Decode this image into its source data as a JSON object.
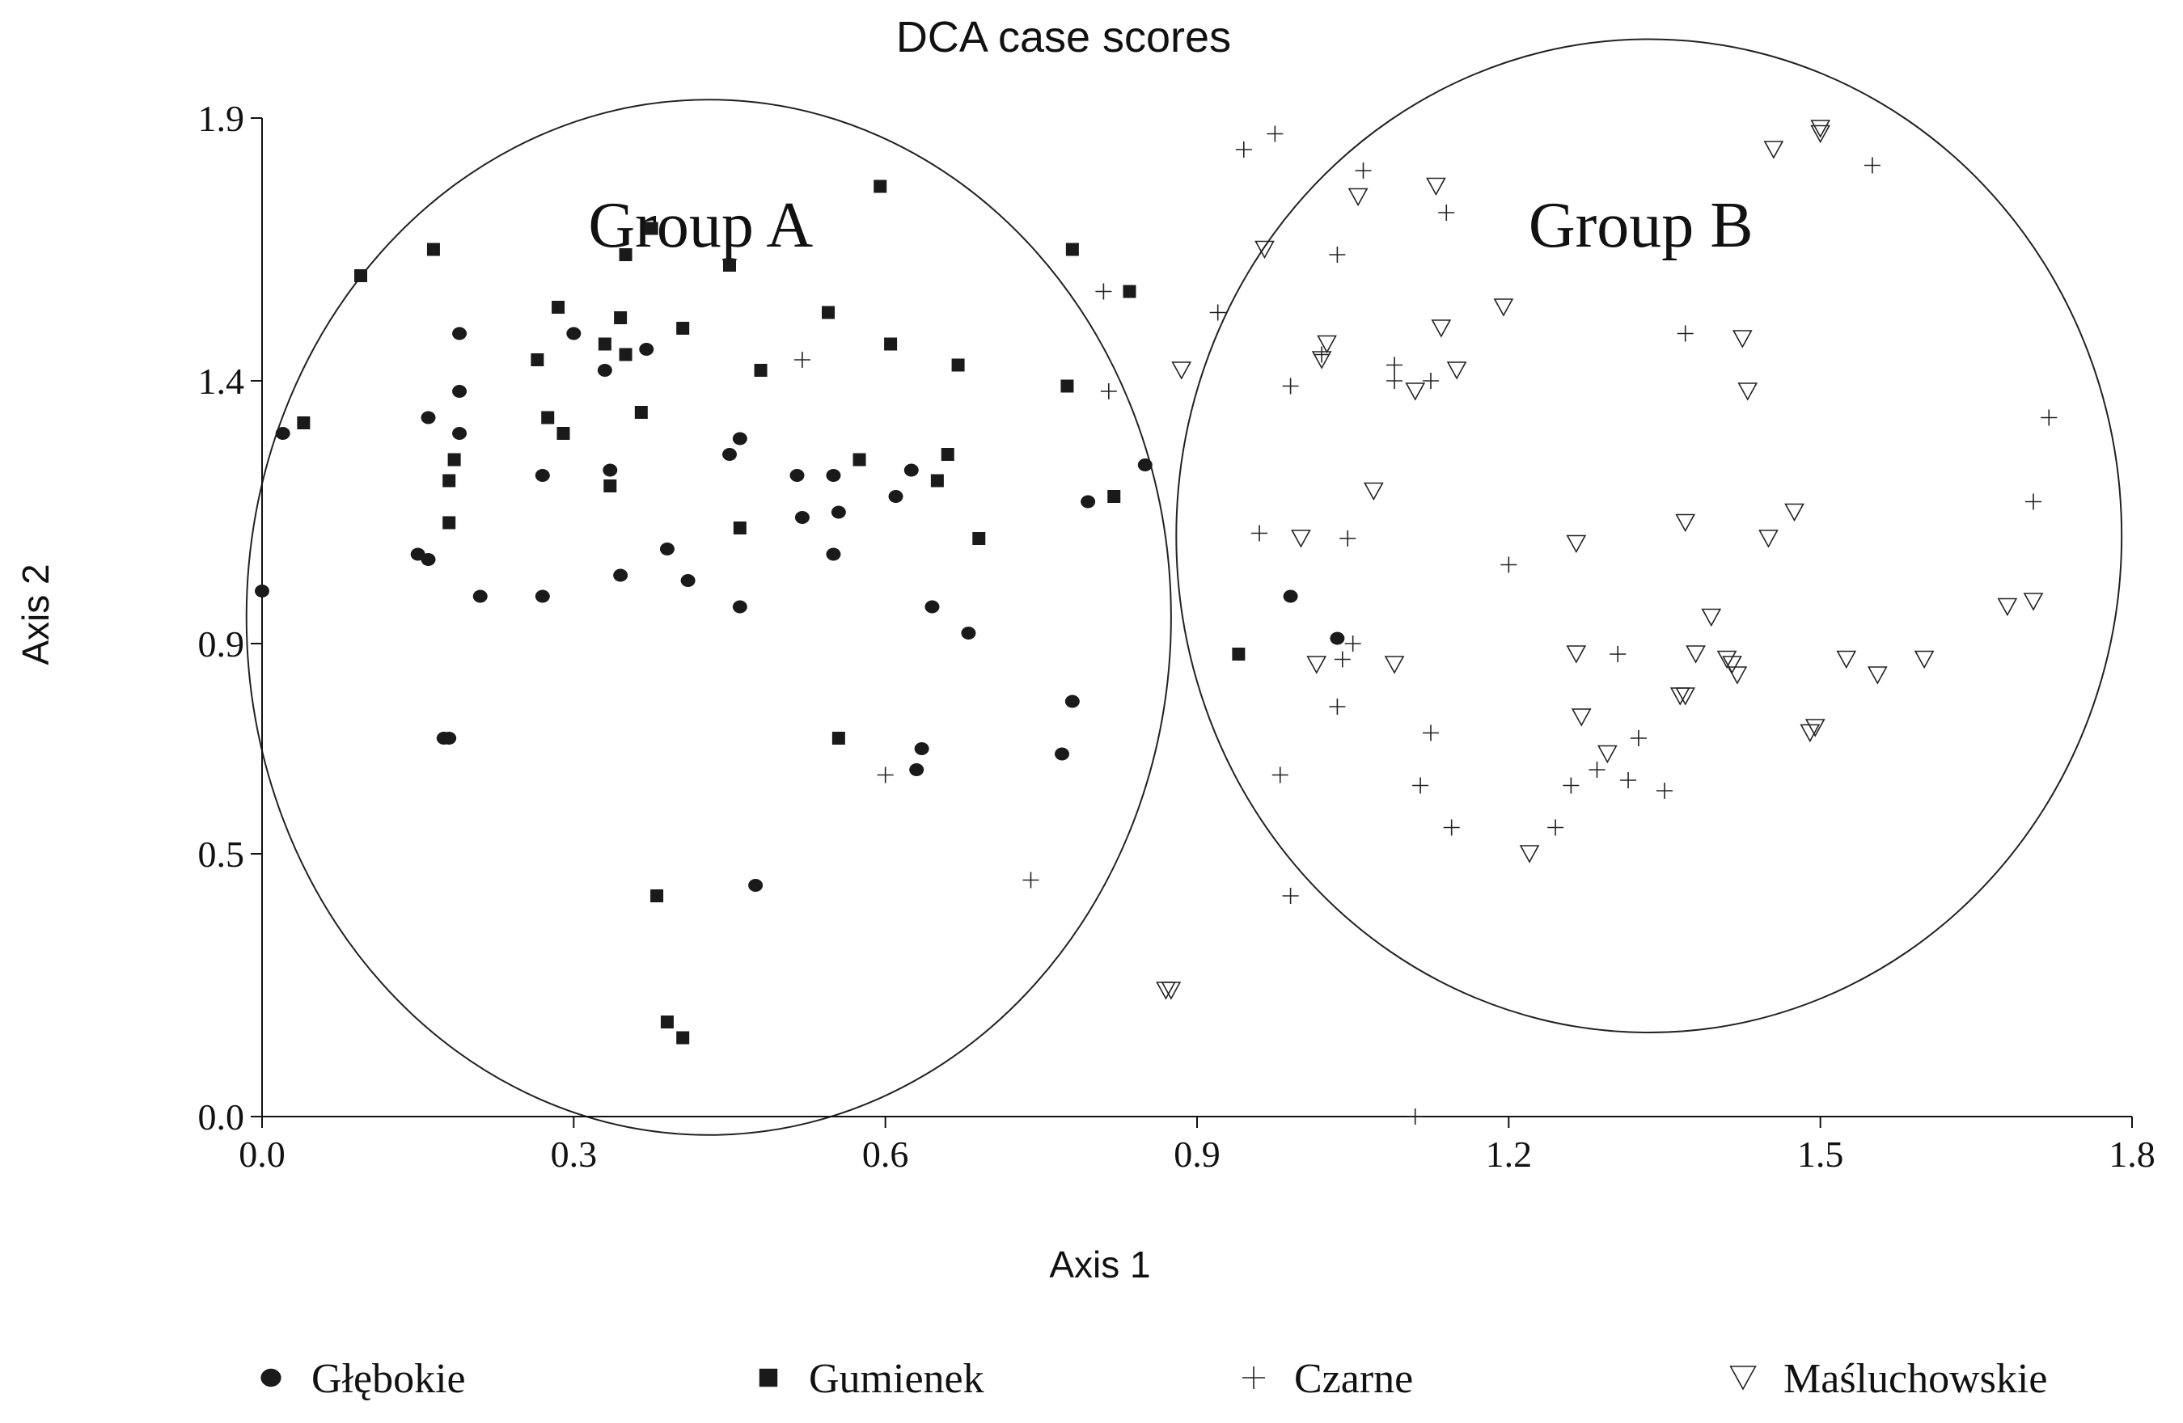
{
  "chart_data": {
    "type": "scatter",
    "title": "DCA case scores",
    "xlabel": "Axis 1",
    "ylabel": "Axis 2",
    "xlim": [
      0.0,
      1.8
    ],
    "ylim": [
      0.0,
      1.9
    ],
    "x_ticks": [
      "0.0",
      "0.3",
      "0.6",
      "0.9",
      "1.2",
      "1.5",
      "1.8"
    ],
    "y_ticks": [
      "0.0",
      "0.5",
      "0.9",
      "1.4",
      "1.9"
    ],
    "x_tick_values": [
      0.0,
      0.3,
      0.6,
      0.9,
      1.2,
      1.5,
      1.8
    ],
    "y_tick_values": [
      0.0,
      0.5,
      0.9,
      1.4,
      1.9
    ],
    "grid": false,
    "legend_position": "bottom",
    "annotations": [
      {
        "label": "Group A",
        "center": [
          0.43,
          0.95
        ],
        "rx": 0.445,
        "ry": 0.985
      },
      {
        "label": "Group B",
        "center": [
          1.335,
          1.105
        ],
        "rx": 0.455,
        "ry": 0.945
      }
    ],
    "series": [
      {
        "name": "Głębokie",
        "marker": "circle",
        "points": [
          [
            0.0,
            1.0
          ],
          [
            0.02,
            1.3
          ],
          [
            0.15,
            1.07
          ],
          [
            0.16,
            1.06
          ],
          [
            0.16,
            1.33
          ],
          [
            0.175,
            0.72
          ],
          [
            0.18,
            0.72
          ],
          [
            0.19,
            1.38
          ],
          [
            0.19,
            1.3
          ],
          [
            0.19,
            1.49
          ],
          [
            0.21,
            0.99
          ],
          [
            0.27,
            1.22
          ],
          [
            0.27,
            0.99
          ],
          [
            0.3,
            1.49
          ],
          [
            0.33,
            1.42
          ],
          [
            0.335,
            1.23
          ],
          [
            0.345,
            1.03
          ],
          [
            0.37,
            1.46
          ],
          [
            0.39,
            1.08
          ],
          [
            0.41,
            1.02
          ],
          [
            0.45,
            1.26
          ],
          [
            0.46,
            1.29
          ],
          [
            0.46,
            0.97
          ],
          [
            0.475,
            0.44
          ],
          [
            0.515,
            1.22
          ],
          [
            0.52,
            1.14
          ],
          [
            0.55,
            1.22
          ],
          [
            0.555,
            1.15
          ],
          [
            0.55,
            1.07
          ],
          [
            0.61,
            1.18
          ],
          [
            0.625,
            1.23
          ],
          [
            0.63,
            0.66
          ],
          [
            0.635,
            0.7
          ],
          [
            0.645,
            0.97
          ],
          [
            0.68,
            0.92
          ],
          [
            0.77,
            0.69
          ],
          [
            0.78,
            0.79
          ],
          [
            0.795,
            1.17
          ],
          [
            0.85,
            1.24
          ],
          [
            0.99,
            0.99
          ],
          [
            1.035,
            0.91
          ]
        ]
      },
      {
        "name": "Gumienek",
        "marker": "square",
        "points": [
          [
            0.04,
            1.32
          ],
          [
            0.095,
            1.6
          ],
          [
            0.165,
            1.65
          ],
          [
            0.18,
            1.13
          ],
          [
            0.18,
            1.21
          ],
          [
            0.185,
            1.25
          ],
          [
            0.265,
            1.44
          ],
          [
            0.275,
            1.33
          ],
          [
            0.285,
            1.54
          ],
          [
            0.29,
            1.3
          ],
          [
            0.33,
            1.47
          ],
          [
            0.335,
            1.2
          ],
          [
            0.345,
            1.52
          ],
          [
            0.35,
            1.45
          ],
          [
            0.35,
            1.64
          ],
          [
            0.365,
            1.34
          ],
          [
            0.375,
            1.69
          ],
          [
            0.38,
            0.42
          ],
          [
            0.39,
            0.18
          ],
          [
            0.405,
            0.15
          ],
          [
            0.405,
            1.5
          ],
          [
            0.46,
            1.12
          ],
          [
            0.45,
            1.62
          ],
          [
            0.48,
            1.42
          ],
          [
            0.545,
            1.53
          ],
          [
            0.555,
            0.72
          ],
          [
            0.575,
            1.25
          ],
          [
            0.595,
            1.77
          ],
          [
            0.605,
            1.47
          ],
          [
            0.65,
            1.21
          ],
          [
            0.66,
            1.26
          ],
          [
            0.67,
            1.43
          ],
          [
            0.69,
            1.1
          ],
          [
            0.775,
            1.39
          ],
          [
            0.78,
            1.65
          ],
          [
            0.82,
            1.18
          ],
          [
            0.835,
            1.57
          ],
          [
            0.94,
            0.88
          ]
        ]
      },
      {
        "name": "Czarne",
        "marker": "plus",
        "points": [
          [
            0.52,
            1.44
          ],
          [
            0.6,
            0.65
          ],
          [
            0.74,
            0.45
          ],
          [
            0.81,
            1.57
          ],
          [
            0.815,
            1.38
          ],
          [
            0.92,
            1.53
          ],
          [
            0.945,
            1.84
          ],
          [
            0.96,
            1.11
          ],
          [
            0.975,
            1.87
          ],
          [
            0.98,
            0.65
          ],
          [
            0.99,
            0.42
          ],
          [
            0.99,
            1.39
          ],
          [
            1.02,
            1.45
          ],
          [
            1.035,
            1.64
          ],
          [
            1.035,
            0.78
          ],
          [
            1.04,
            0.87
          ],
          [
            1.045,
            1.1
          ],
          [
            1.05,
            0.9
          ],
          [
            1.06,
            1.8
          ],
          [
            1.09,
            1.4
          ],
          [
            1.09,
            1.43
          ],
          [
            1.11,
            0.0
          ],
          [
            1.115,
            0.63
          ],
          [
            1.125,
            1.4
          ],
          [
            1.125,
            0.73
          ],
          [
            1.14,
            1.72
          ],
          [
            1.145,
            0.55
          ],
          [
            1.2,
            1.05
          ],
          [
            1.245,
            0.55
          ],
          [
            1.26,
            0.63
          ],
          [
            1.285,
            0.66
          ],
          [
            1.305,
            0.88
          ],
          [
            1.315,
            0.64
          ],
          [
            1.325,
            0.72
          ],
          [
            1.35,
            0.62
          ],
          [
            1.37,
            1.49
          ],
          [
            1.55,
            1.81
          ],
          [
            1.705,
            1.17
          ],
          [
            1.72,
            1.33
          ]
        ]
      },
      {
        "name": "Maśluchowskie",
        "marker": "triangle-down",
        "points": [
          [
            0.87,
            0.24
          ],
          [
            0.875,
            0.24
          ],
          [
            0.885,
            1.42
          ],
          [
            0.965,
            1.65
          ],
          [
            1.0,
            1.1
          ],
          [
            1.015,
            0.86
          ],
          [
            1.02,
            1.44
          ],
          [
            1.025,
            1.47
          ],
          [
            1.055,
            1.75
          ],
          [
            1.07,
            1.19
          ],
          [
            1.09,
            0.86
          ],
          [
            1.11,
            1.38
          ],
          [
            1.13,
            1.77
          ],
          [
            1.135,
            1.5
          ],
          [
            1.15,
            1.42
          ],
          [
            1.195,
            1.54
          ],
          [
            1.22,
            0.5
          ],
          [
            1.265,
            0.88
          ],
          [
            1.265,
            1.09
          ],
          [
            1.27,
            0.76
          ],
          [
            1.295,
            0.69
          ],
          [
            1.365,
            0.8
          ],
          [
            1.37,
            0.8
          ],
          [
            1.37,
            1.13
          ],
          [
            1.38,
            0.88
          ],
          [
            1.395,
            0.95
          ],
          [
            1.41,
            0.87
          ],
          [
            1.415,
            0.86
          ],
          [
            1.42,
            0.84
          ],
          [
            1.425,
            1.48
          ],
          [
            1.43,
            1.38
          ],
          [
            1.45,
            1.1
          ],
          [
            1.455,
            1.84
          ],
          [
            1.475,
            1.15
          ],
          [
            1.49,
            0.73
          ],
          [
            1.495,
            0.74
          ],
          [
            1.5,
            1.87
          ],
          [
            1.5,
            1.88
          ],
          [
            1.525,
            0.87
          ],
          [
            1.555,
            0.84
          ],
          [
            1.6,
            0.87
          ],
          [
            1.68,
            0.97
          ],
          [
            1.705,
            0.98
          ]
        ]
      }
    ]
  }
}
